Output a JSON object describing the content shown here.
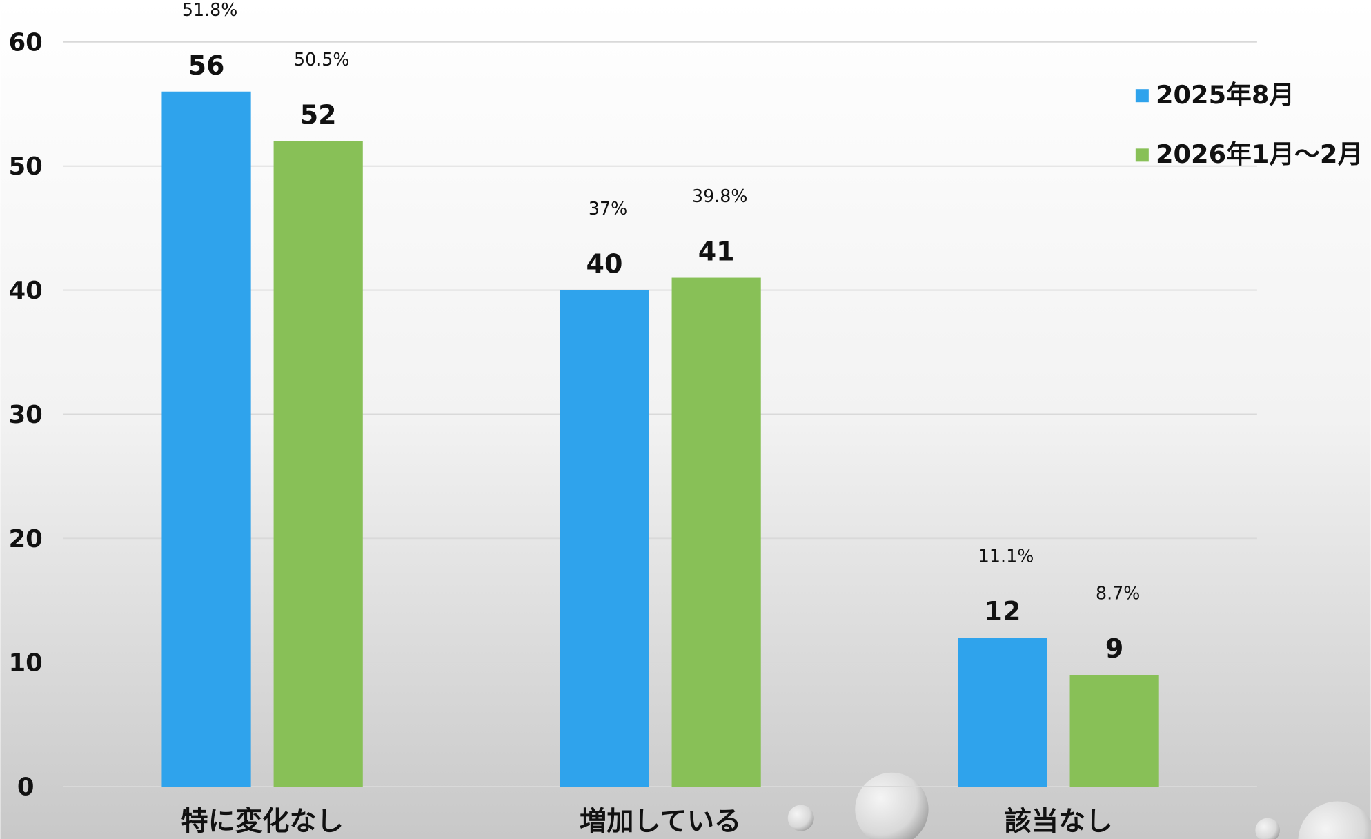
{
  "chart_data": {
    "type": "bar",
    "categories": [
      "特に変化なし",
      "増加している",
      "該当なし"
    ],
    "series": [
      {
        "name": "2025年8月",
        "color": "#2fa3ec",
        "values": [
          56,
          40,
          12
        ],
        "percent_labels": [
          "51.8%",
          "37%",
          "11.1%"
        ]
      },
      {
        "name": "2026年1月～2月",
        "color": "#88c057",
        "values": [
          52,
          41,
          9
        ],
        "percent_labels": [
          "50.5%",
          "39.8%",
          "8.7%"
        ]
      }
    ],
    "ylim": [
      0,
      60
    ],
    "yticks": [
      0,
      10,
      20,
      30,
      40,
      50,
      60
    ],
    "grid": true,
    "legend": "top-right"
  }
}
